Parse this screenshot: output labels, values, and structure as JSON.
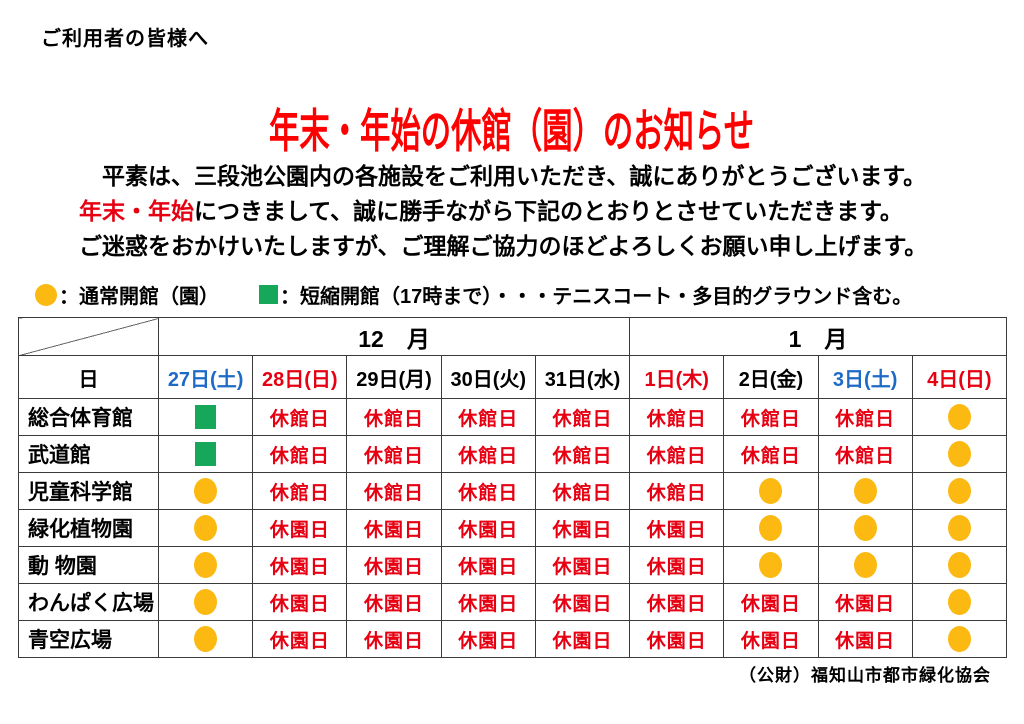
{
  "header": {
    "greeting": "ご利用者の皆様へ",
    "title": "年末・年始の休館（園）のお知らせ"
  },
  "paragraph": {
    "line1": "　平素は、三段池公園内の各施設をご利用いただき、誠にありがとうございます。",
    "line2_highlight": "年末・年始",
    "line2_rest": "につきまして、誠に勝手ながら下記のとおりとさせていただきます。",
    "line3": "ご迷惑をおかけいたしますが、ご理解ご協力のほどよろしくお願い申し上げます。"
  },
  "legend": {
    "regular_icon": "orange-circle",
    "regular_label": "：通常開館（園）",
    "short_icon": "green-square",
    "short_label": "：短縮開館（17時まで）・・・テニスコート・多目的グラウンド含む。"
  },
  "table": {
    "day_header": "日",
    "months": [
      {
        "label": "12　月",
        "span": 5
      },
      {
        "label": "1　月",
        "span": 4
      }
    ],
    "dates": [
      {
        "label": "27日(土)",
        "color_key": "saturday_blue"
      },
      {
        "label": "28日(日)",
        "color_key": "holiday_red"
      },
      {
        "label": "29日(月)",
        "color_key": "weekday_black"
      },
      {
        "label": "30日(火)",
        "color_key": "weekday_black"
      },
      {
        "label": "31日(水)",
        "color_key": "weekday_black"
      },
      {
        "label": "1日(木)",
        "color_key": "holiday_red"
      },
      {
        "label": "2日(金)",
        "color_key": "weekday_black"
      },
      {
        "label": "3日(土)",
        "color_key": "saturday_blue"
      },
      {
        "label": "4日(日)",
        "color_key": "holiday_red"
      }
    ],
    "rows": [
      {
        "label": "総合体育館",
        "cells": [
          {
            "icon": "square"
          },
          {
            "text": "休館日"
          },
          {
            "text": "休館日"
          },
          {
            "text": "休館日"
          },
          {
            "text": "休館日"
          },
          {
            "text": "休館日"
          },
          {
            "text": "休館日"
          },
          {
            "text": "休館日"
          },
          {
            "icon": "circle"
          }
        ]
      },
      {
        "label": "武道館",
        "cells": [
          {
            "icon": "square"
          },
          {
            "text": "休館日"
          },
          {
            "text": "休館日"
          },
          {
            "text": "休館日"
          },
          {
            "text": "休館日"
          },
          {
            "text": "休館日"
          },
          {
            "text": "休館日"
          },
          {
            "text": "休館日"
          },
          {
            "icon": "circle"
          }
        ]
      },
      {
        "label": "児童科学館",
        "cells": [
          {
            "icon": "circle"
          },
          {
            "text": "休館日"
          },
          {
            "text": "休館日"
          },
          {
            "text": "休館日"
          },
          {
            "text": "休館日"
          },
          {
            "text": "休館日"
          },
          {
            "icon": "circle"
          },
          {
            "icon": "circle"
          },
          {
            "icon": "circle"
          }
        ]
      },
      {
        "label": "緑化植物園",
        "cells": [
          {
            "icon": "circle"
          },
          {
            "text": "休園日"
          },
          {
            "text": "休園日"
          },
          {
            "text": "休園日"
          },
          {
            "text": "休園日"
          },
          {
            "text": "休園日"
          },
          {
            "icon": "circle"
          },
          {
            "icon": "circle"
          },
          {
            "icon": "circle"
          }
        ]
      },
      {
        "label": "動 物園",
        "cells": [
          {
            "icon": "circle"
          },
          {
            "text": "休園日"
          },
          {
            "text": "休園日"
          },
          {
            "text": "休園日"
          },
          {
            "text": "休園日"
          },
          {
            "text": "休園日"
          },
          {
            "icon": "circle"
          },
          {
            "icon": "circle"
          },
          {
            "icon": "circle"
          }
        ]
      },
      {
        "label": "わんぱく広場",
        "cells": [
          {
            "icon": "circle"
          },
          {
            "text": "休園日"
          },
          {
            "text": "休園日"
          },
          {
            "text": "休園日"
          },
          {
            "text": "休園日"
          },
          {
            "text": "休園日"
          },
          {
            "text": "休園日"
          },
          {
            "text": "休園日"
          },
          {
            "icon": "circle"
          }
        ]
      },
      {
        "label": "青空広場",
        "cells": [
          {
            "icon": "circle"
          },
          {
            "text": "休園日"
          },
          {
            "text": "休園日"
          },
          {
            "text": "休園日"
          },
          {
            "text": "休園日"
          },
          {
            "text": "休園日"
          },
          {
            "text": "休園日"
          },
          {
            "text": "休園日"
          },
          {
            "icon": "circle"
          }
        ]
      }
    ]
  },
  "footer": {
    "organization": "（公財）福知山市都市緑化協会"
  },
  "colors": {
    "title_red": "#ff0000",
    "closed_red": "#e60012",
    "holiday_red": "#e60012",
    "saturday_blue": "#1d6bc7",
    "weekday_black": "#000000",
    "circle_orange": "#fbb912",
    "square_green": "#17a75b"
  }
}
